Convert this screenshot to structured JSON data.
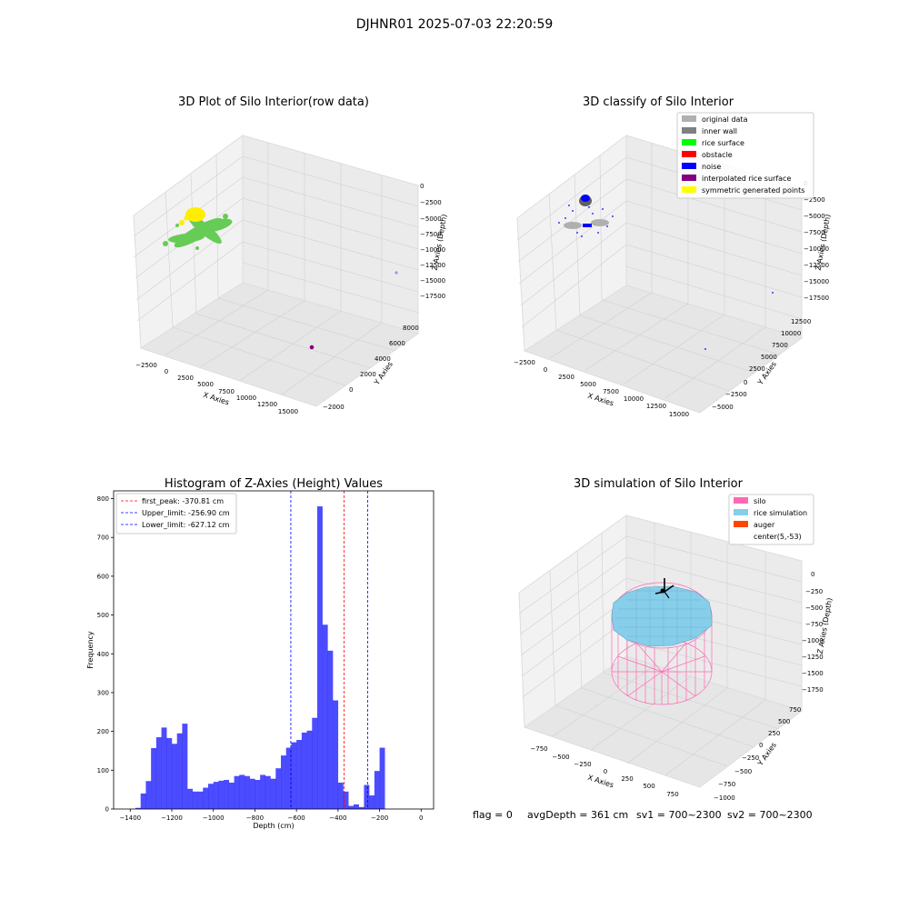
{
  "suptitle": "DJHNR01 2025-07-03 22:20:59",
  "footer": {
    "flag": "flag = 0",
    "avg": "avgDepth = 361 cm",
    "sv1": "sv1 = 700~2300",
    "sv2": "sv2 = 700~2300"
  },
  "colors": {
    "histogram_bar": "#0000ff",
    "first_peak_line": "#ff0000",
    "limit_lines": "#0000ff",
    "silo": "#ff69b4",
    "rice_simulation": "#87ceeb",
    "auger": "#ff4500",
    "rice_points": "#66cc55",
    "yellow_points": "#ffee00",
    "noise": "#0000ff",
    "original_data": "#b0b0b0"
  },
  "chart_data": [
    {
      "type": "scatter",
      "title": "3D Plot of Silo Interior(row data)",
      "xlabel": "X Axies",
      "ylabel": "Y Axies",
      "zlabel": "Z Axies (Depth)",
      "x_ticks": [
        "−2500",
        "0",
        "2500",
        "5000",
        "7500",
        "10000",
        "12500",
        "15000"
      ],
      "y_ticks": [
        "−2000",
        "0",
        "2000",
        "4000",
        "6000",
        "8000"
      ],
      "z_ticks": [
        "0",
        "−2500",
        "−5000",
        "−7500",
        "−10000",
        "−12500",
        "−15000",
        "−17500"
      ]
    },
    {
      "type": "scatter",
      "title": "3D classify of Silo Interior",
      "xlabel": "X Axies",
      "ylabel": "Y Axies",
      "zlabel": "Z Axies (Depth)",
      "x_ticks": [
        "−2500",
        "0",
        "2500",
        "5000",
        "7500",
        "10000",
        "12500",
        "15000"
      ],
      "y_ticks": [
        "−5000",
        "−2500",
        "0",
        "2500",
        "5000",
        "7500",
        "10000",
        "12500"
      ],
      "z_ticks": [
        "0",
        "−2500",
        "−5000",
        "−7500",
        "−10000",
        "−12500",
        "−15000",
        "−17500"
      ],
      "legend": [
        {
          "label": "original data",
          "color": "#b0b0b0"
        },
        {
          "label": "inner wall",
          "color": "#808080"
        },
        {
          "label": "rice surface",
          "color": "#00ff00"
        },
        {
          "label": "obstacle",
          "color": "#ff0000"
        },
        {
          "label": "noise",
          "color": "#0000ff"
        },
        {
          "label": "interpolated rice surface",
          "color": "#800080"
        },
        {
          "label": "symmetric generated points",
          "color": "#ffff00"
        }
      ],
      "legend_position": "top-right"
    },
    {
      "type": "bar",
      "title": "Histogram of Z-Axies (Height) Values",
      "xlabel": "Depth (cm)",
      "ylabel": "Frequency",
      "xlim": [
        -1480,
        60
      ],
      "ylim": [
        0,
        820
      ],
      "bin_width": 25,
      "bin_starts": [
        -1375,
        -1350,
        -1325,
        -1300,
        -1275,
        -1250,
        -1225,
        -1200,
        -1175,
        -1150,
        -1125,
        -1100,
        -1075,
        -1050,
        -1025,
        -1000,
        -975,
        -950,
        -925,
        -900,
        -875,
        -850,
        -825,
        -800,
        -775,
        -750,
        -725,
        -700,
        -675,
        -650,
        -625,
        -600,
        -575,
        -550,
        -525,
        -500,
        -475,
        -450,
        -425,
        -400,
        -375,
        -350,
        -325,
        -300,
        -275,
        -250,
        -225,
        -200,
        -175,
        -150,
        -125,
        -100,
        -75,
        -50,
        -25,
        0
      ],
      "values": [
        3,
        40,
        72,
        157,
        185,
        210,
        183,
        168,
        195,
        220,
        52,
        45,
        45,
        55,
        65,
        70,
        73,
        75,
        68,
        85,
        88,
        85,
        78,
        75,
        88,
        85,
        78,
        105,
        138,
        158,
        172,
        178,
        197,
        202,
        235,
        780,
        475,
        408,
        280,
        68,
        45,
        8,
        12,
        5,
        62,
        35,
        98,
        158,
        0,
        0,
        0,
        0,
        0,
        0,
        0,
        0
      ],
      "x_ticks": [
        -1400,
        -1200,
        -1000,
        -800,
        -600,
        -400,
        -200,
        0
      ],
      "y_ticks": [
        0,
        100,
        200,
        300,
        400,
        500,
        600,
        700,
        800
      ],
      "x_tick_labels": [
        "−1400",
        "−1200",
        "−1000",
        "−800",
        "−600",
        "−400",
        "−200",
        "0"
      ],
      "vlines": [
        {
          "label": "first_peak: -370.81 cm",
          "x": -370.81,
          "color": "#ff0000"
        },
        {
          "label": "Upper_limit: -256.90 cm",
          "x": -256.9,
          "color": "#0000ff"
        },
        {
          "label": "Lower_limit: -627.12 cm",
          "x": -627.12,
          "color": "#0000ff"
        }
      ],
      "legend_position": "top-left"
    },
    {
      "type": "scatter",
      "title": "3D simulation of Silo Interior",
      "xlabel": "X Axies",
      "ylabel": "Y Axies",
      "zlabel": "Z Axies (Depth)",
      "x_ticks": [
        "−750",
        "−500",
        "−250",
        "0",
        "250",
        "500",
        "750"
      ],
      "y_ticks": [
        "−1000",
        "−750",
        "−500",
        "−250",
        "0",
        "250",
        "500",
        "750"
      ],
      "z_ticks": [
        "0",
        "−250",
        "−500",
        "−750",
        "−1000",
        "−1250",
        "−1500",
        "−1750"
      ],
      "legend": [
        {
          "label": "silo",
          "color": "#ff69b4"
        },
        {
          "label": "rice simulation",
          "color": "#87ceeb"
        },
        {
          "label": "auger",
          "color": "#ff4500"
        },
        {
          "label": "center(5,-53)",
          "color": ""
        }
      ],
      "legend_position": "top-right"
    }
  ]
}
